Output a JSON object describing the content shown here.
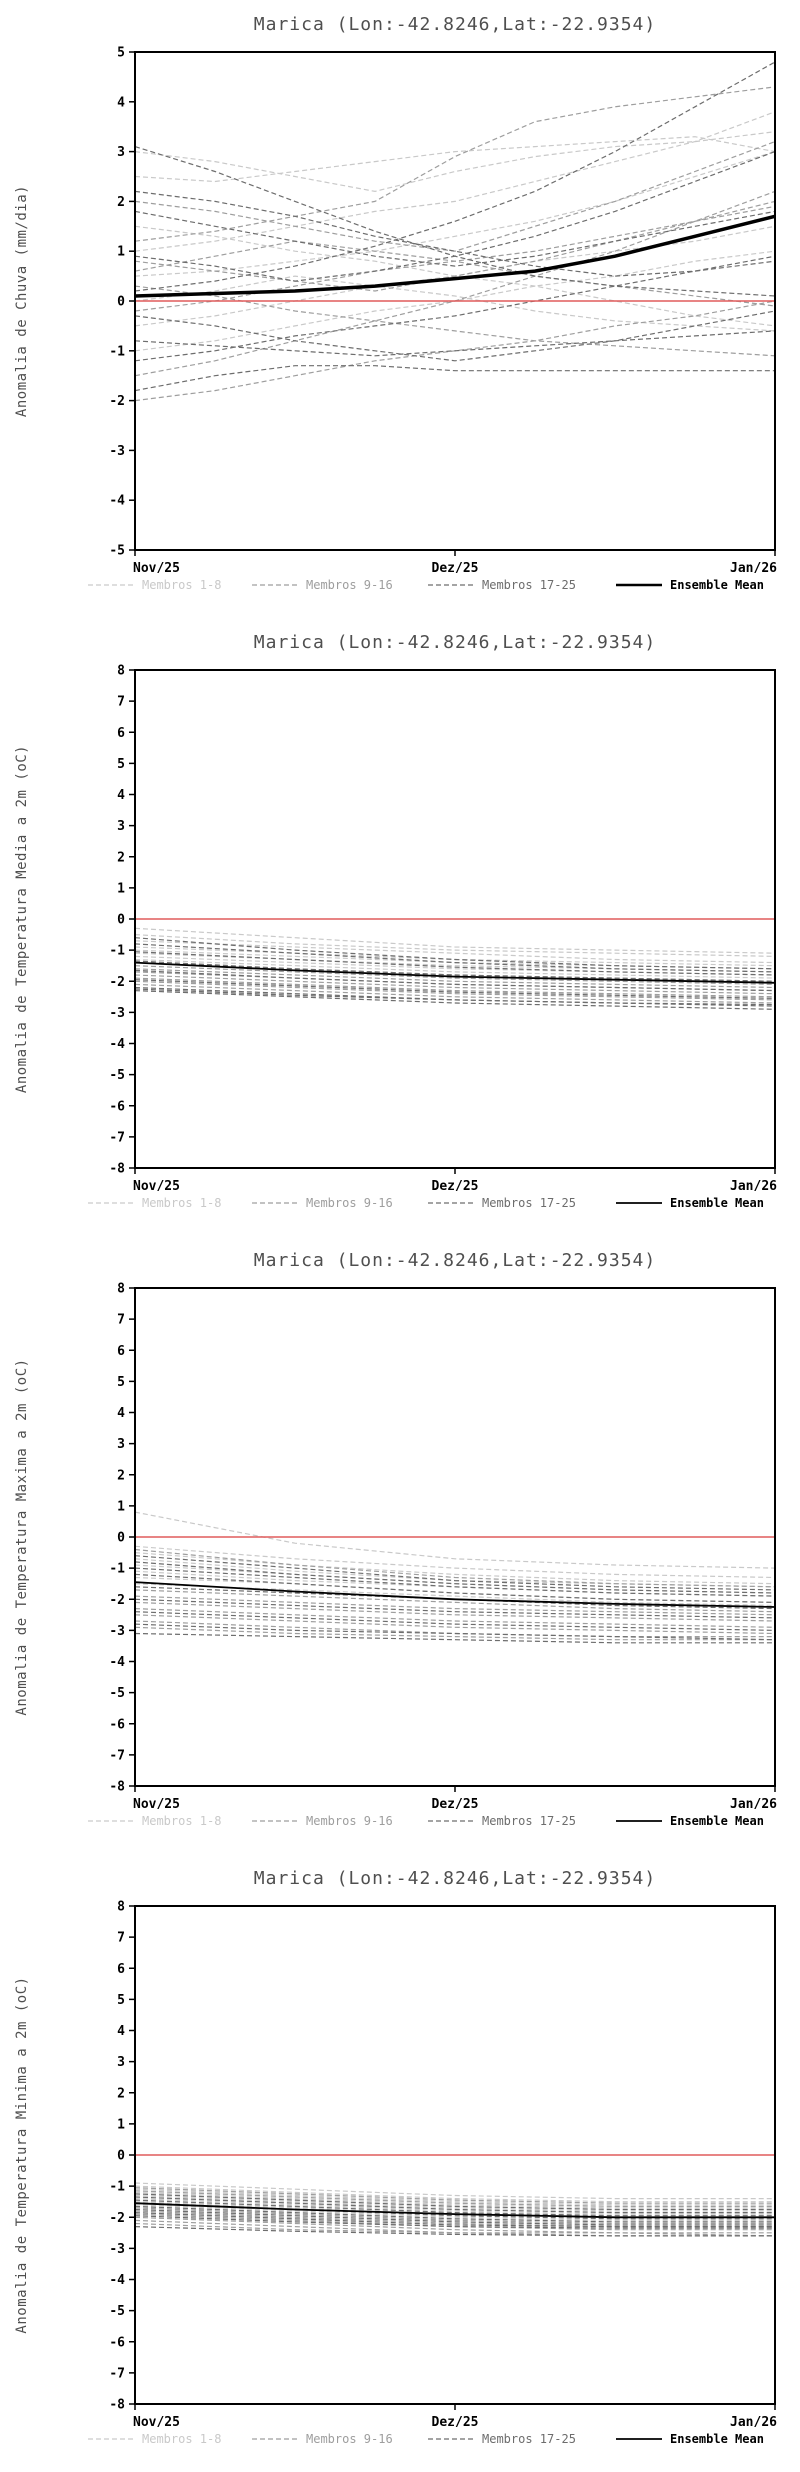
{
  "page": {
    "background": "#ffffff"
  },
  "chart_data": [
    {
      "type": "line",
      "title": "Marica (Lon:-42.8246,Lat:-22.9354)",
      "ylabel": "Anomalia de Chuva (mm/dia)",
      "x_ticks": [
        "Nov/25",
        "Dez/25",
        "Jan/26"
      ],
      "ylim": [
        -5,
        5
      ],
      "y_tick_step": 1,
      "grid": false,
      "legend_position": "bottom",
      "zero_line": {
        "value": 0,
        "color": "#e05c5c"
      },
      "member_groups": [
        {
          "label": "Membros 1-8",
          "color": "#c9c9c9",
          "series": [
            [
              3.0,
              2.8,
              2.5,
              2.2,
              2.6,
              2.9,
              3.1,
              3.2,
              3.4
            ],
            [
              2.5,
              2.4,
              2.6,
              2.8,
              3.0,
              3.1,
              3.2,
              3.3,
              3.0
            ],
            [
              1.0,
              1.2,
              1.5,
              1.8,
              2.0,
              2.4,
              2.8,
              3.2,
              3.8
            ],
            [
              0.5,
              0.6,
              0.8,
              1.0,
              1.3,
              1.6,
              2.0,
              2.5,
              3.0
            ],
            [
              -0.5,
              -0.3,
              0.0,
              0.3,
              0.5,
              0.8,
              1.0,
              1.2,
              1.5
            ],
            [
              -1.0,
              -0.8,
              -0.5,
              -0.2,
              0.0,
              0.3,
              0.5,
              0.8,
              1.0
            ],
            [
              0.0,
              0.2,
              0.5,
              0.3,
              0.1,
              -0.2,
              -0.4,
              -0.5,
              -0.6
            ],
            [
              1.5,
              1.3,
              1.0,
              0.8,
              0.5,
              0.3,
              0.0,
              -0.3,
              -0.5
            ]
          ]
        },
        {
          "label": "Membros 9-16",
          "color": "#9e9e9e",
          "series": [
            [
              2.0,
              1.8,
              1.5,
              1.2,
              1.0,
              1.5,
              2.0,
              2.6,
              3.2
            ],
            [
              -1.5,
              -1.2,
              -0.8,
              -0.4,
              0.0,
              0.5,
              1.0,
              1.6,
              2.2
            ],
            [
              0.8,
              0.6,
              0.4,
              0.2,
              0.5,
              0.8,
              1.2,
              1.6,
              2.0
            ],
            [
              -0.2,
              0.0,
              0.3,
              0.6,
              0.8,
              1.0,
              1.3,
              1.6,
              1.9
            ],
            [
              0.3,
              0.1,
              -0.2,
              -0.4,
              -0.6,
              -0.8,
              -0.9,
              -1.0,
              -1.1
            ],
            [
              -2.0,
              -1.8,
              -1.5,
              -1.2,
              -1.0,
              -0.8,
              -0.5,
              -0.3,
              0.0
            ],
            [
              1.2,
              1.4,
              1.7,
              2.0,
              2.9,
              3.6,
              3.9,
              4.1,
              4.3
            ],
            [
              0.6,
              0.9,
              1.2,
              1.0,
              0.8,
              0.5,
              0.3,
              0.1,
              -0.1
            ]
          ]
        },
        {
          "label": "Membros 17-25",
          "color": "#6d6d6d",
          "series": [
            [
              3.1,
              2.6,
              2.0,
              1.4,
              0.9,
              0.5,
              0.3,
              0.2,
              0.1
            ],
            [
              -1.8,
              -1.5,
              -1.3,
              -1.3,
              -1.4,
              -1.4,
              -1.4,
              -1.4,
              -1.4
            ],
            [
              0.2,
              0.4,
              0.7,
              1.1,
              1.6,
              2.2,
              3.0,
              3.9,
              4.8
            ],
            [
              -0.8,
              -0.9,
              -1.0,
              -1.1,
              -1.0,
              -0.9,
              -0.8,
              -0.7,
              -0.6
            ],
            [
              2.2,
              2.0,
              1.7,
              1.3,
              1.0,
              0.7,
              0.5,
              0.6,
              0.8
            ],
            [
              -0.3,
              -0.5,
              -0.8,
              -1.0,
              -1.2,
              -1.0,
              -0.8,
              -0.5,
              -0.2
            ],
            [
              0.9,
              0.7,
              0.4,
              0.6,
              0.9,
              1.3,
              1.8,
              2.4,
              3.0
            ],
            [
              -1.2,
              -1.0,
              -0.7,
              -0.5,
              -0.3,
              0.0,
              0.3,
              0.6,
              0.9
            ],
            [
              1.8,
              1.5,
              1.2,
              0.9,
              0.7,
              0.9,
              1.2,
              1.5,
              1.8
            ]
          ]
        }
      ],
      "mean": {
        "label": "Ensemble Mean",
        "color": "#000000",
        "width": 3.5,
        "values": [
          0.1,
          0.15,
          0.2,
          0.3,
          0.45,
          0.6,
          0.9,
          1.3,
          1.7
        ]
      }
    },
    {
      "type": "line",
      "title": "Marica (Lon:-42.8246,Lat:-22.9354)",
      "ylabel": "Anomalia de Temperatura Media a 2m (oC)",
      "x_ticks": [
        "Nov/25",
        "Dez/25",
        "Jan/26"
      ],
      "ylim": [
        -8,
        8
      ],
      "y_tick_step": 1,
      "grid": false,
      "legend_position": "bottom",
      "zero_line": {
        "value": 0,
        "color": "#e05c5c"
      },
      "member_groups": [
        {
          "label": "Membros 1-8",
          "color": "#c9c9c9",
          "series": [
            [
              -0.3,
              -0.6,
              -0.9,
              -1.0,
              -1.1
            ],
            [
              -0.5,
              -0.8,
              -1.0,
              -1.1,
              -1.2
            ],
            [
              -0.7,
              -0.9,
              -1.1,
              -1.3,
              -1.4
            ],
            [
              -0.9,
              -1.1,
              -1.3,
              -1.4,
              -1.5
            ],
            [
              -1.0,
              -1.2,
              -1.4,
              -1.5,
              -1.6
            ],
            [
              -1.1,
              -1.3,
              -1.5,
              -1.6,
              -1.7
            ],
            [
              -1.2,
              -1.4,
              -1.6,
              -1.7,
              -1.8
            ],
            [
              -1.3,
              -1.5,
              -1.7,
              -1.8,
              -1.9
            ]
          ]
        },
        {
          "label": "Membros 9-16",
          "color": "#9e9e9e",
          "series": [
            [
              -1.4,
              -1.6,
              -1.8,
              -1.9,
              -2.0
            ],
            [
              -1.5,
              -1.7,
              -1.9,
              -2.0,
              -2.1
            ],
            [
              -1.6,
              -1.8,
              -2.0,
              -2.1,
              -2.2
            ],
            [
              -1.7,
              -1.9,
              -2.1,
              -2.2,
              -2.3
            ],
            [
              -1.8,
              -2.0,
              -2.2,
              -2.3,
              -2.4
            ],
            [
              -1.9,
              -2.1,
              -2.3,
              -2.4,
              -2.5
            ],
            [
              -2.0,
              -2.2,
              -2.4,
              -2.5,
              -2.6
            ],
            [
              -2.1,
              -2.3,
              -2.5,
              -2.6,
              -2.7
            ]
          ]
        },
        {
          "label": "Membros 17-25",
          "color": "#6d6d6d",
          "series": [
            [
              -2.2,
              -2.4,
              -2.6,
              -2.7,
              -2.8
            ],
            [
              -2.3,
              -2.5,
              -2.7,
              -2.8,
              -2.9
            ],
            [
              -0.6,
              -1.0,
              -1.3,
              -1.5,
              -1.6
            ],
            [
              -0.8,
              -1.1,
              -1.4,
              -1.6,
              -1.7
            ],
            [
              -1.05,
              -1.3,
              -1.55,
              -1.7,
              -1.8
            ],
            [
              -1.35,
              -1.6,
              -1.8,
              -1.9,
              -2.0
            ],
            [
              -1.65,
              -1.9,
              -2.1,
              -2.2,
              -2.3
            ],
            [
              -1.95,
              -2.15,
              -2.35,
              -2.45,
              -2.55
            ],
            [
              -2.25,
              -2.45,
              -2.6,
              -2.7,
              -2.75
            ]
          ]
        }
      ],
      "mean": {
        "label": "Ensemble Mean",
        "color": "#000000",
        "width": 1.8,
        "values": [
          -1.4,
          -1.65,
          -1.85,
          -1.95,
          -2.05
        ]
      }
    },
    {
      "type": "line",
      "title": "Marica (Lon:-42.8246,Lat:-22.9354)",
      "ylabel": "Anomalia de Temperatura Maxima a 2m (oC)",
      "x_ticks": [
        "Nov/25",
        "Dez/25",
        "Jan/26"
      ],
      "ylim": [
        -8,
        8
      ],
      "y_tick_step": 1,
      "grid": false,
      "legend_position": "bottom",
      "zero_line": {
        "value": 0,
        "color": "#e05c5c"
      },
      "member_groups": [
        {
          "label": "Membros 1-8",
          "color": "#c9c9c9",
          "series": [
            [
              0.8,
              -0.2,
              -0.7,
              -0.9,
              -1.0
            ],
            [
              -0.3,
              -0.7,
              -1.0,
              -1.2,
              -1.3
            ],
            [
              -0.5,
              -0.9,
              -1.2,
              -1.4,
              -1.5
            ],
            [
              -0.7,
              -1.1,
              -1.4,
              -1.5,
              -1.6
            ],
            [
              -0.9,
              -1.2,
              -1.5,
              -1.7,
              -1.8
            ],
            [
              -1.1,
              -1.4,
              -1.6,
              -1.8,
              -1.9
            ],
            [
              -1.3,
              -1.5,
              -1.8,
              -2.0,
              -2.1
            ],
            [
              -1.5,
              -1.7,
              -1.9,
              -2.1,
              -2.2
            ]
          ]
        },
        {
          "label": "Membros 9-16",
          "color": "#9e9e9e",
          "series": [
            [
              -1.7,
              -1.9,
              -2.1,
              -2.3,
              -2.4
            ],
            [
              -1.9,
              -2.1,
              -2.3,
              -2.4,
              -2.5
            ],
            [
              -2.1,
              -2.3,
              -2.5,
              -2.6,
              -2.7
            ],
            [
              -2.3,
              -2.5,
              -2.7,
              -2.8,
              -2.9
            ],
            [
              -2.5,
              -2.7,
              -2.9,
              -3.0,
              -3.1
            ],
            [
              -2.7,
              -2.9,
              -3.1,
              -3.2,
              -3.2
            ],
            [
              -2.9,
              -3.1,
              -3.2,
              -3.3,
              -3.3
            ],
            [
              -0.4,
              -0.9,
              -1.3,
              -1.5,
              -1.6
            ]
          ]
        },
        {
          "label": "Membros 17-25",
          "color": "#6d6d6d",
          "series": [
            [
              -0.6,
              -1.0,
              -1.4,
              -1.6,
              -1.7
            ],
            [
              -0.8,
              -1.2,
              -1.5,
              -1.7,
              -1.8
            ],
            [
              -1.0,
              -1.3,
              -1.6,
              -1.8,
              -1.9
            ],
            [
              -1.2,
              -1.5,
              -1.8,
              -2.0,
              -2.1
            ],
            [
              -1.6,
              -1.8,
              -2.0,
              -2.2,
              -2.3
            ],
            [
              -2.0,
              -2.2,
              -2.4,
              -2.5,
              -2.6
            ],
            [
              -2.4,
              -2.6,
              -2.8,
              -2.9,
              -3.0
            ],
            [
              -2.8,
              -3.0,
              -3.1,
              -3.2,
              -3.3
            ],
            [
              -3.1,
              -3.2,
              -3.3,
              -3.4,
              -3.4
            ]
          ]
        }
      ],
      "mean": {
        "label": "Ensemble Mean",
        "color": "#000000",
        "width": 1.8,
        "values": [
          -1.45,
          -1.75,
          -2.0,
          -2.15,
          -2.25
        ]
      }
    },
    {
      "type": "line",
      "title": "Marica (Lon:-42.8246,Lat:-22.9354)",
      "ylabel": "Anomalia de Temperatura Minima a 2m (oC)",
      "x_ticks": [
        "Nov/25",
        "Dez/25",
        "Jan/26"
      ],
      "ylim": [
        -8,
        8
      ],
      "y_tick_step": 1,
      "grid": false,
      "legend_position": "bottom",
      "zero_line": {
        "value": 0,
        "color": "#e05c5c"
      },
      "member_groups": [
        {
          "label": "Membros 1-8",
          "color": "#c9c9c9",
          "series": [
            [
              -0.9,
              -1.1,
              -1.3,
              -1.4,
              -1.4
            ],
            [
              -1.0,
              -1.2,
              -1.4,
              -1.5,
              -1.5
            ],
            [
              -1.1,
              -1.3,
              -1.5,
              -1.6,
              -1.6
            ],
            [
              -1.2,
              -1.4,
              -1.6,
              -1.7,
              -1.7
            ],
            [
              -1.3,
              -1.5,
              -1.7,
              -1.8,
              -1.8
            ],
            [
              -1.4,
              -1.6,
              -1.8,
              -1.9,
              -1.9
            ],
            [
              -1.5,
              -1.7,
              -1.9,
              -2.0,
              -2.0
            ],
            [
              -1.6,
              -1.8,
              -2.0,
              -2.1,
              -2.1
            ]
          ]
        },
        {
          "label": "Membros 9-16",
          "color": "#9e9e9e",
          "series": [
            [
              -1.7,
              -1.9,
              -2.1,
              -2.2,
              -2.2
            ],
            [
              -1.8,
              -2.0,
              -2.2,
              -2.3,
              -2.3
            ],
            [
              -1.9,
              -2.1,
              -2.3,
              -2.4,
              -2.4
            ],
            [
              -2.0,
              -2.2,
              -2.4,
              -2.5,
              -2.5
            ],
            [
              -2.1,
              -2.3,
              -2.5,
              -2.5,
              -2.6
            ],
            [
              -2.2,
              -2.4,
              -2.5,
              -2.6,
              -2.6
            ],
            [
              -1.05,
              -1.25,
              -1.45,
              -1.55,
              -1.55
            ],
            [
              -1.15,
              -1.35,
              -1.55,
              -1.65,
              -1.65
            ]
          ]
        },
        {
          "label": "Membros 17-25",
          "color": "#6d6d6d",
          "series": [
            [
              -1.25,
              -1.45,
              -1.65,
              -1.75,
              -1.75
            ],
            [
              -1.35,
              -1.55,
              -1.75,
              -1.85,
              -1.85
            ],
            [
              -1.45,
              -1.65,
              -1.85,
              -1.95,
              -1.95
            ],
            [
              -1.55,
              -1.75,
              -1.95,
              -2.05,
              -2.05
            ],
            [
              -1.65,
              -1.85,
              -2.05,
              -2.15,
              -2.15
            ],
            [
              -1.75,
              -1.95,
              -2.15,
              -2.25,
              -2.25
            ],
            [
              -1.85,
              -2.05,
              -2.25,
              -2.3,
              -2.3
            ],
            [
              -1.95,
              -2.15,
              -2.3,
              -2.35,
              -2.35
            ],
            [
              -2.3,
              -2.45,
              -2.55,
              -2.6,
              -2.6
            ]
          ]
        }
      ],
      "mean": {
        "label": "Ensemble Mean",
        "color": "#000000",
        "width": 1.8,
        "values": [
          -1.55,
          -1.75,
          -1.9,
          -2.0,
          -2.0
        ]
      }
    }
  ]
}
